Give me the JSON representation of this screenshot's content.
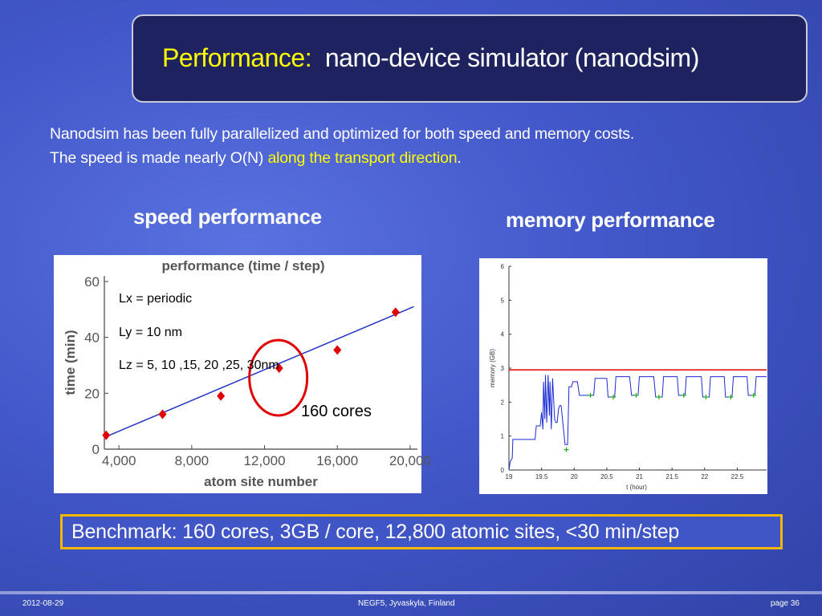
{
  "title": {
    "highlight": "Performance:",
    "rest": "nano-device simulator (nanodsim)"
  },
  "intro": {
    "line1": "Nanodsim has been fully parallelized and optimized for both speed and memory costs.",
    "line2_start": "The speed is made nearly O(N) ",
    "line2_highlight": "along the transport direction",
    "line2_end": "."
  },
  "speed_heading": "speed performance",
  "memory_heading": "memory performance",
  "benchmark": "Benchmark: 160 cores, 3GB / core, 12,800 atomic sites, <30 min/step",
  "footer": {
    "date": "2012-08-29",
    "center": "NEGF5, Jyvaskyla, Finland",
    "page": "page 36"
  },
  "chart_data": [
    {
      "type": "scatter",
      "title": "performance (time / step)",
      "xlabel": "atom site number",
      "ylabel": "time (min)",
      "xlim": [
        3200,
        20400
      ],
      "ylim": [
        0,
        62
      ],
      "xticks": [
        4000,
        8000,
        12000,
        16000,
        20000
      ],
      "xtick_labels": [
        "4,000",
        "8,000",
        "12,000",
        "16,000",
        "20,000"
      ],
      "yticks": [
        0,
        20,
        40,
        60
      ],
      "series": [
        {
          "points": [
            [
              3300,
              5
            ],
            [
              6400,
              12.5
            ],
            [
              9600,
              19
            ],
            [
              12800,
              29
            ],
            [
              16000,
              35.5
            ],
            [
              19200,
              49
            ]
          ],
          "color": "#e00000",
          "marker": "diamond"
        }
      ],
      "fit_line": {
        "from": [
          3300,
          4.5
        ],
        "to": [
          20200,
          51
        ],
        "color": "#2233cc"
      },
      "annotations": [
        "Lx = periodic",
        "Ly = 10 nm",
        "Lz = 5, 10 ,15, 20 ,25, 30nm",
        "160 cores"
      ],
      "highlight_circle_at": [
        12800,
        29
      ]
    },
    {
      "type": "line",
      "xlabel": "t (hour)",
      "ylabel": "memory (GB)",
      "xlim": [
        19,
        22.95
      ],
      "ylim": [
        0,
        6
      ],
      "xticks": [
        19,
        19.5,
        20,
        20.5,
        21,
        21.5,
        22,
        22.5
      ],
      "xtick_labels": [
        "19",
        "19.5",
        "20",
        "20.5",
        "21",
        "21.5",
        "22",
        "22.5"
      ],
      "yticks": [
        0,
        1,
        2,
        3,
        4,
        5,
        6
      ],
      "threshold": {
        "y": 2.95,
        "color": "#e00000"
      },
      "memory_trace": [
        [
          19.0,
          0
        ],
        [
          19.02,
          0.25
        ],
        [
          19.05,
          0.35
        ],
        [
          19.06,
          0.9
        ],
        [
          19.4,
          0.9
        ],
        [
          19.42,
          1.3
        ],
        [
          19.48,
          1.3
        ],
        [
          19.5,
          1.7
        ],
        [
          19.52,
          1.2
        ],
        [
          19.53,
          2.6
        ],
        [
          19.55,
          1.5
        ],
        [
          19.56,
          2.8
        ],
        [
          19.58,
          1.4
        ],
        [
          19.6,
          2.8
        ],
        [
          19.62,
          1.6
        ],
        [
          19.63,
          2.6
        ],
        [
          19.65,
          1.2
        ],
        [
          19.67,
          2.7
        ],
        [
          19.7,
          1.5
        ],
        [
          19.72,
          1.4
        ],
        [
          19.74,
          1.4
        ],
        [
          19.76,
          1.8
        ],
        [
          19.78,
          1.9
        ],
        [
          19.8,
          1.9
        ],
        [
          19.86,
          0.75
        ],
        [
          19.9,
          0.75
        ],
        [
          19.92,
          2.45
        ],
        [
          19.96,
          2.45
        ],
        [
          19.98,
          2.6
        ],
        [
          20.05,
          2.6
        ],
        [
          20.08,
          2.2
        ],
        [
          20.3,
          2.2
        ],
        [
          20.32,
          2.7
        ],
        [
          20.5,
          2.7
        ],
        [
          20.52,
          2.15
        ],
        [
          20.62,
          2.15
        ],
        [
          20.64,
          2.75
        ],
        [
          20.85,
          2.75
        ],
        [
          20.88,
          2.2
        ],
        [
          20.98,
          2.2
        ],
        [
          21.0,
          2.75
        ],
        [
          21.22,
          2.75
        ],
        [
          21.25,
          2.15
        ],
        [
          21.35,
          2.15
        ],
        [
          21.37,
          2.75
        ],
        [
          21.58,
          2.75
        ],
        [
          21.6,
          2.2
        ],
        [
          21.7,
          2.2
        ],
        [
          21.72,
          2.75
        ],
        [
          21.95,
          2.75
        ],
        [
          21.97,
          2.15
        ],
        [
          22.07,
          2.15
        ],
        [
          22.09,
          2.75
        ],
        [
          22.3,
          2.75
        ],
        [
          22.32,
          2.15
        ],
        [
          22.42,
          2.15
        ],
        [
          22.44,
          2.75
        ],
        [
          22.65,
          2.75
        ],
        [
          22.67,
          2.2
        ],
        [
          22.77,
          2.2
        ],
        [
          22.79,
          2.75
        ],
        [
          22.95,
          2.75
        ]
      ],
      "markers": [
        [
          19.88,
          0.6
        ],
        [
          20.25,
          2.2
        ],
        [
          20.6,
          2.15
        ],
        [
          20.95,
          2.2
        ],
        [
          21.3,
          2.15
        ],
        [
          21.68,
          2.2
        ],
        [
          22.02,
          2.15
        ],
        [
          22.4,
          2.15
        ],
        [
          22.75,
          2.2
        ]
      ],
      "colors": {
        "trace": "#1a2bd6",
        "marker": "#22aa22"
      }
    }
  ]
}
